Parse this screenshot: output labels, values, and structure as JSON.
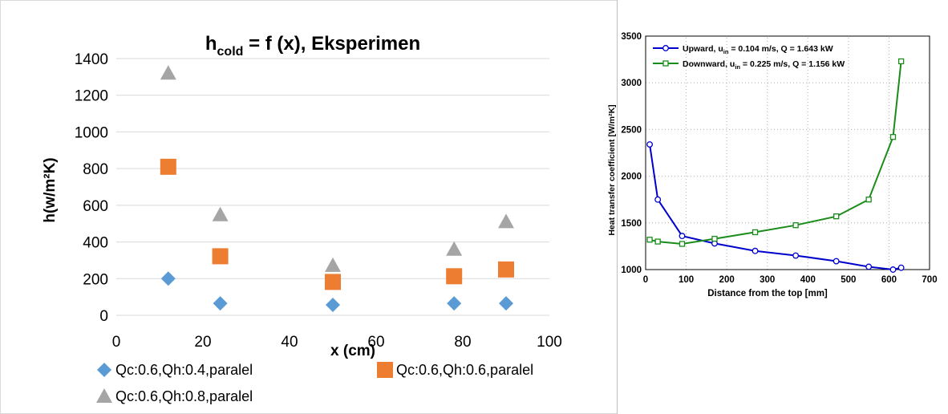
{
  "chart_data": [
    {
      "type": "scatter",
      "title_main": "h",
      "title_sub": "cold",
      "title_rest": " = f (x), Eksperimen",
      "xlabel": "x (cm)",
      "ylabel": "h(w/m²K)",
      "xlim": [
        0,
        100
      ],
      "ylim": [
        0,
        1400
      ],
      "xticks": [
        0,
        20,
        40,
        60,
        80,
        100
      ],
      "yticks": [
        0,
        200,
        400,
        600,
        800,
        1000,
        1200,
        1400
      ],
      "grid": "horizontal",
      "legend_position": "bottom",
      "series": [
        {
          "name": "Qc:0.6,Qh:0.4,paralel",
          "marker": "diamond",
          "color": "#5B9BD5",
          "points": [
            [
              12,
              200
            ],
            [
              24,
              65
            ],
            [
              50,
              57
            ],
            [
              78,
              65
            ],
            [
              90,
              65
            ]
          ]
        },
        {
          "name": "Qc:0.6,Qh:0.6,paralel",
          "marker": "square",
          "color": "#ED7D31",
          "points": [
            [
              12,
              810
            ],
            [
              24,
              322
            ],
            [
              50,
              182
            ],
            [
              78,
              213
            ],
            [
              90,
              250
            ]
          ]
        },
        {
          "name": "Qc:0.6,Qh:0.8,paralel",
          "marker": "triangle",
          "color": "#A5A5A5",
          "points": [
            [
              12,
              1320
            ],
            [
              24,
              548
            ],
            [
              50,
              272
            ],
            [
              78,
              360
            ],
            [
              90,
              510
            ]
          ]
        }
      ]
    },
    {
      "type": "line",
      "xlabel": "Distance from the top [mm]",
      "ylabel": "Heat transfer coefficient [W/m²K]",
      "xlim": [
        0,
        700
      ],
      "ylim": [
        1000,
        3500
      ],
      "xticks": [
        0,
        100,
        200,
        300,
        400,
        500,
        600,
        700
      ],
      "yticks": [
        1000,
        1500,
        2000,
        2500,
        3000,
        3500
      ],
      "grid": "dotted",
      "legend_position": "top-left",
      "series": [
        {
          "name_pre": "Upward, u",
          "name_sub": "in",
          "name_post": " = 0.104 m/s, Q = 1.643 kW",
          "marker": "circle",
          "color": "#0000CC",
          "points": [
            [
              10,
              2340
            ],
            [
              30,
              1750
            ],
            [
              90,
              1360
            ],
            [
              170,
              1280
            ],
            [
              270,
              1200
            ],
            [
              370,
              1150
            ],
            [
              470,
              1090
            ],
            [
              550,
              1030
            ],
            [
              610,
              1000
            ],
            [
              630,
              1020
            ]
          ]
        },
        {
          "name_pre": "Downward, u",
          "name_sub": "in",
          "name_post": " = 0.225 m/s, Q = 1.156 kW",
          "marker": "square",
          "color": "#1A8C1A",
          "points": [
            [
              10,
              1320
            ],
            [
              30,
              1300
            ],
            [
              90,
              1275
            ],
            [
              170,
              1330
            ],
            [
              270,
              1400
            ],
            [
              370,
              1475
            ],
            [
              470,
              1570
            ],
            [
              550,
              1750
            ],
            [
              610,
              2420
            ],
            [
              630,
              3230
            ]
          ]
        }
      ]
    }
  ]
}
